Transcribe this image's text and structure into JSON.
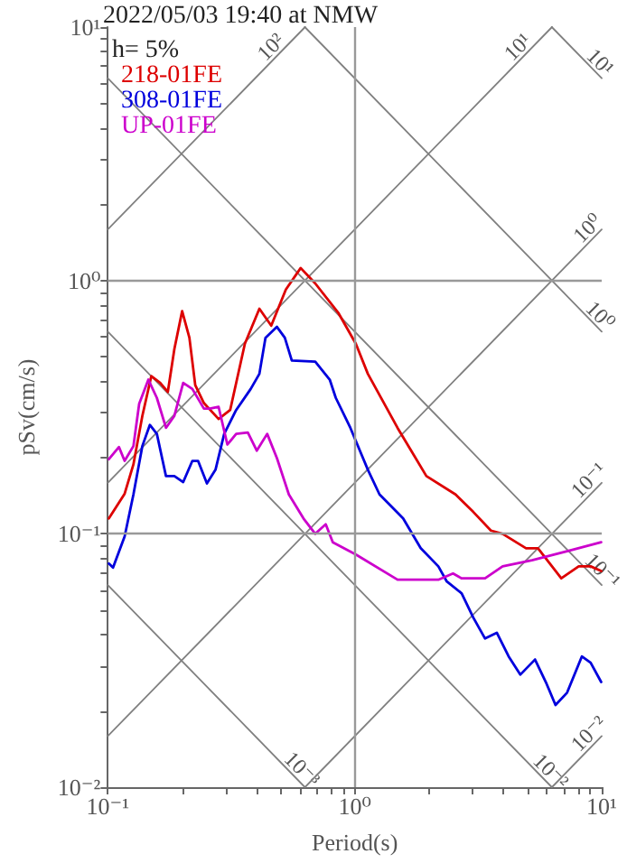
{
  "chart_data": {
    "type": "line",
    "title": "2022/05/03 19:40 at NMW",
    "xlabel": "Period(s)",
    "ylabel": "pSv(cm/s)",
    "log": "xy",
    "grid": true,
    "legend": "top left",
    "marker": "none",
    "line_style": "solid",
    "xlim": [
      0.1,
      10
    ],
    "ylim": [
      0.01,
      10
    ],
    "xticks": [
      {
        "value": 0.1,
        "label": "10⁻¹"
      },
      {
        "value": 0.2,
        "label": null
      },
      {
        "value": 0.3,
        "label": null
      },
      {
        "value": 0.4,
        "label": null
      },
      {
        "value": 0.5,
        "label": null
      },
      {
        "value": 0.6,
        "label": null
      },
      {
        "value": 0.7,
        "label": null
      },
      {
        "value": 0.8,
        "label": null
      },
      {
        "value": 0.9,
        "label": null
      },
      {
        "value": 1,
        "label": "10⁰"
      },
      {
        "value": 2,
        "label": null
      },
      {
        "value": 3,
        "label": null
      },
      {
        "value": 4,
        "label": null
      },
      {
        "value": 5,
        "label": null
      },
      {
        "value": 6,
        "label": null
      },
      {
        "value": 7,
        "label": null
      },
      {
        "value": 8,
        "label": null
      },
      {
        "value": 9,
        "label": null
      },
      {
        "value": 10,
        "label": "10¹"
      }
    ],
    "yticks": [
      {
        "value": 0.01,
        "label": "10⁻²"
      },
      {
        "value": 0.02,
        "label": null
      },
      {
        "value": 0.03,
        "label": null
      },
      {
        "value": 0.04,
        "label": null
      },
      {
        "value": 0.05,
        "label": null
      },
      {
        "value": 0.06,
        "label": null
      },
      {
        "value": 0.07,
        "label": null
      },
      {
        "value": 0.08,
        "label": null
      },
      {
        "value": 0.09,
        "label": null
      },
      {
        "value": 0.1,
        "label": "10⁻¹"
      },
      {
        "value": 0.2,
        "label": null
      },
      {
        "value": 0.3,
        "label": null
      },
      {
        "value": 0.4,
        "label": null
      },
      {
        "value": 0.5,
        "label": null
      },
      {
        "value": 0.6,
        "label": null
      },
      {
        "value": 0.7,
        "label": null
      },
      {
        "value": 0.8,
        "label": null
      },
      {
        "value": 0.9,
        "label": null
      },
      {
        "value": 1,
        "label": "10⁰"
      },
      {
        "value": 2,
        "label": null
      },
      {
        "value": 3,
        "label": null
      },
      {
        "value": 4,
        "label": null
      },
      {
        "value": 5,
        "label": null
      },
      {
        "value": 6,
        "label": null
      },
      {
        "value": 7,
        "label": null
      },
      {
        "value": 8,
        "label": null
      },
      {
        "value": 9,
        "label": null
      },
      {
        "value": 10,
        "label": "10¹"
      }
    ],
    "series": [
      {
        "name": "218-01FE",
        "color": "#dd0000",
        "x": [
          0.101,
          0.117,
          0.127,
          0.138,
          0.15,
          0.163,
          0.175,
          0.186,
          0.2,
          0.214,
          0.226,
          0.245,
          0.281,
          0.313,
          0.359,
          0.411,
          0.459,
          0.526,
          0.604,
          0.692,
          0.861,
          1.01,
          1.13,
          1.49,
          1.95,
          2.56,
          3.02,
          3.56,
          3.97,
          4.94,
          5.52,
          6.86,
          8.07,
          9.02,
          9.95
        ],
        "values": [
          0.115,
          0.144,
          0.188,
          0.292,
          0.419,
          0.394,
          0.363,
          0.536,
          0.757,
          0.594,
          0.386,
          0.328,
          0.284,
          0.308,
          0.563,
          0.773,
          0.663,
          0.921,
          1.12,
          0.973,
          0.741,
          0.563,
          0.428,
          0.262,
          0.169,
          0.143,
          0.122,
          0.103,
          0.1,
          0.0877,
          0.0877,
          0.0667,
          0.0744,
          0.0744,
          0.0713
        ]
      },
      {
        "name": "308-01FE",
        "color": "#0000dd",
        "x": [
          0.101,
          0.105,
          0.117,
          0.127,
          0.138,
          0.148,
          0.158,
          0.172,
          0.186,
          0.202,
          0.22,
          0.232,
          0.252,
          0.273,
          0.296,
          0.331,
          0.379,
          0.411,
          0.435,
          0.484,
          0.521,
          0.556,
          0.692,
          0.792,
          0.838,
          0.96,
          1.13,
          1.26,
          1.57,
          1.85,
          2.18,
          2.36,
          2.71,
          3.02,
          3.37,
          3.76,
          4.2,
          4.68,
          5.37,
          5.98,
          6.5,
          7.24,
          8.31,
          9.02,
          9.95
        ],
        "values": [
          0.0764,
          0.0736,
          0.0977,
          0.143,
          0.222,
          0.269,
          0.248,
          0.169,
          0.169,
          0.16,
          0.194,
          0.194,
          0.158,
          0.179,
          0.248,
          0.308,
          0.373,
          0.428,
          0.594,
          0.656,
          0.594,
          0.483,
          0.478,
          0.406,
          0.344,
          0.262,
          0.179,
          0.143,
          0.115,
          0.0877,
          0.0744,
          0.0648,
          0.0582,
          0.0467,
          0.0386,
          0.0407,
          0.0328,
          0.0278,
          0.0319,
          0.0256,
          0.0211,
          0.0236,
          0.0328,
          0.031,
          0.026
        ]
      },
      {
        "name": "UP-01FE",
        "color": "#cc00cc",
        "x": [
          0.101,
          0.111,
          0.117,
          0.127,
          0.134,
          0.146,
          0.158,
          0.172,
          0.186,
          0.202,
          0.22,
          0.245,
          0.259,
          0.281,
          0.305,
          0.331,
          0.369,
          0.401,
          0.442,
          0.484,
          0.541,
          0.62,
          0.692,
          0.763,
          0.815,
          1.01,
          1.49,
          2.18,
          2.5,
          2.71,
          3.37,
          3.97,
          5.22,
          7.24,
          9.95
        ],
        "values": [
          0.197,
          0.22,
          0.194,
          0.222,
          0.326,
          0.406,
          0.344,
          0.262,
          0.292,
          0.394,
          0.373,
          0.312,
          0.312,
          0.317,
          0.225,
          0.248,
          0.251,
          0.213,
          0.248,
          0.199,
          0.143,
          0.115,
          0.1,
          0.109,
          0.0926,
          0.0829,
          0.0659,
          0.0659,
          0.0697,
          0.0667,
          0.0667,
          0.0744,
          0.0786,
          0.0853,
          0.0926
        ]
      },
      {
        "color": "#808080",
        "x": [
          0.1,
          0.629
        ],
        "values": [
          1.59,
          10
        ]
      },
      {
        "color": "#808080",
        "x": [
          0.1,
          6.29
        ],
        "values": [
          0.159,
          10
        ]
      },
      {
        "color": "#808080",
        "x": [
          0.1,
          10
        ],
        "values": [
          0.0159,
          1.59
        ]
      },
      {
        "color": "#808080",
        "x": [
          0.629,
          10
        ],
        "values": [
          0.01,
          0.159
        ]
      },
      {
        "color": "#808080",
        "x": [
          6.29,
          10
        ],
        "values": [
          0.01,
          0.0159
        ]
      },
      {
        "color": "#808080",
        "x": [
          6.28,
          10
        ],
        "values": [
          10,
          6.28
        ]
      },
      {
        "color": "#808080",
        "x": [
          0.628,
          10
        ],
        "values": [
          10,
          0.628
        ]
      },
      {
        "color": "#808080",
        "x": [
          0.1,
          10
        ],
        "values": [
          6.28,
          0.0628
        ]
      },
      {
        "color": "#808080",
        "x": [
          0.1,
          6.28
        ],
        "values": [
          0.628,
          0.01
        ]
      },
      {
        "color": "#808080",
        "x": [
          0.1,
          0.628
        ],
        "values": [
          0.0628,
          0.01
        ]
      }
    ],
    "annotations": [
      "h= 5%",
      {
        "text": "10²",
        "x": 0.49,
        "y": 7.8
      },
      {
        "text": "10¹",
        "x": 4.9,
        "y": 7.8
      },
      {
        "text": "10⁰",
        "x": 9.4,
        "y": 1.5
      },
      {
        "text": "10⁻¹",
        "x": 9.5,
        "y": 0.152
      },
      {
        "text": "10⁻²",
        "x": 9.5,
        "y": 0.0152
      },
      {
        "text": "10¹",
        "x": 9.2,
        "y": 6.8
      },
      {
        "text": "10⁰",
        "x": 9.2,
        "y": 0.68
      },
      {
        "text": "10⁻¹",
        "x": 9.4,
        "y": 0.0668
      },
      {
        "text": "10⁻²",
        "x": 5.8,
        "y": 0.0108
      },
      {
        "text": "10⁻³",
        "x": 0.57,
        "y": 0.011
      }
    ]
  }
}
